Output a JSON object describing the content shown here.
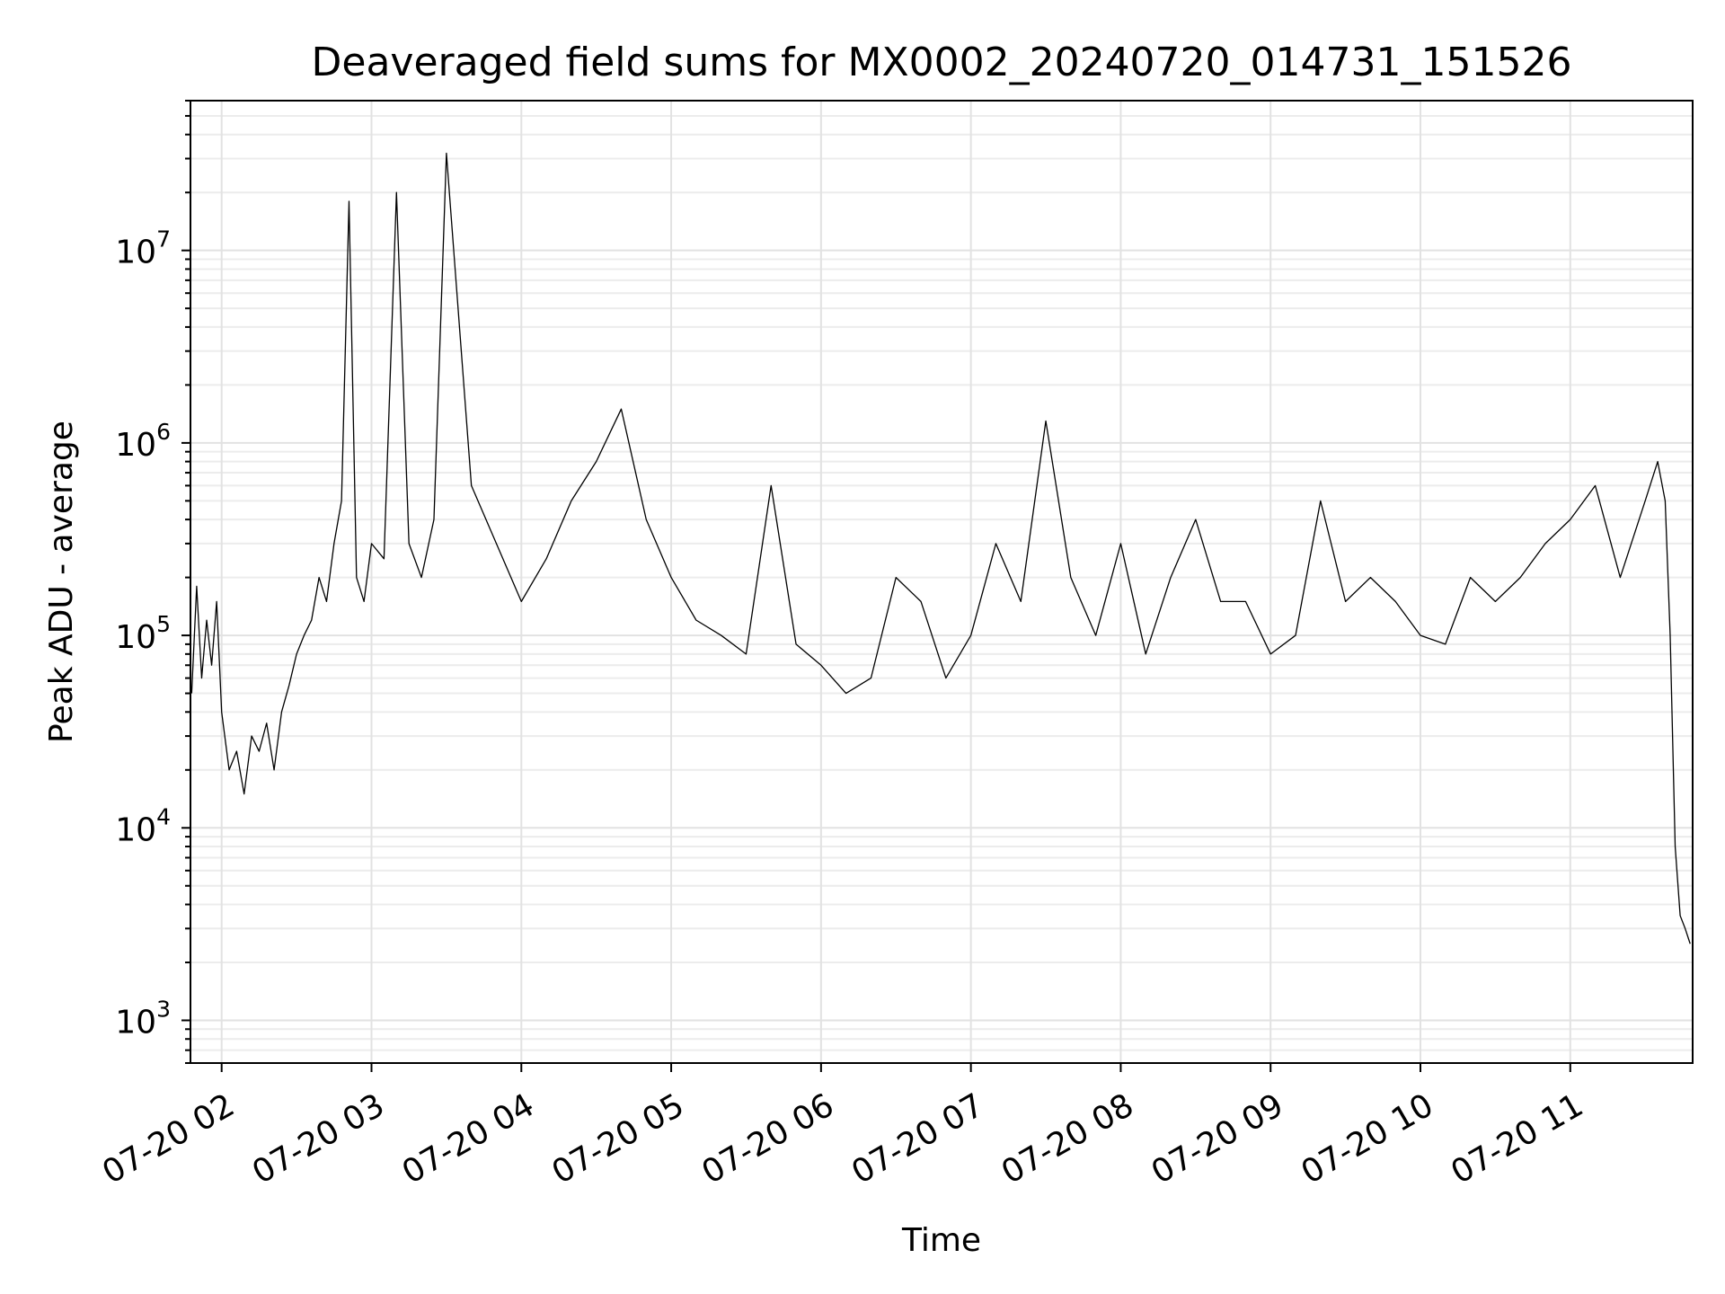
{
  "chart_data": {
    "type": "line",
    "title": "Deaveraged field sums for MX0002_20240720_014731_151526",
    "xlabel": "Time",
    "ylabel": "Peak ADU - average",
    "yscale": "log",
    "ylim": [
      600,
      60000000
    ],
    "xlim": [
      "2024-07-20 01:47:31",
      "2024-07-20 11:49:00"
    ],
    "x_ticks": [
      {
        "time": "2024-07-20 02:00",
        "label": "07-20 02"
      },
      {
        "time": "2024-07-20 03:00",
        "label": "07-20 03"
      },
      {
        "time": "2024-07-20 04:00",
        "label": "07-20 04"
      },
      {
        "time": "2024-07-20 05:00",
        "label": "07-20 05"
      },
      {
        "time": "2024-07-20 06:00",
        "label": "07-20 06"
      },
      {
        "time": "2024-07-20 07:00",
        "label": "07-20 07"
      },
      {
        "time": "2024-07-20 08:00",
        "label": "07-20 08"
      },
      {
        "time": "2024-07-20 09:00",
        "label": "07-20 09"
      },
      {
        "time": "2024-07-20 10:00",
        "label": "07-20 10"
      },
      {
        "time": "2024-07-20 11:00",
        "label": "07-20 11"
      }
    ],
    "y_ticks": [
      {
        "value": 1000,
        "base": "10",
        "exp": "3"
      },
      {
        "value": 10000,
        "base": "10",
        "exp": "4"
      },
      {
        "value": 100000,
        "base": "10",
        "exp": "5"
      },
      {
        "value": 1000000,
        "base": "10",
        "exp": "6"
      },
      {
        "value": 10000000,
        "base": "10",
        "exp": "7"
      }
    ],
    "grid": true,
    "line_color": "#000000",
    "series": [
      {
        "x": [
          "2024-07-20 01:48",
          "2024-07-20 01:50",
          "2024-07-20 01:52",
          "2024-07-20 01:54",
          "2024-07-20 01:56",
          "2024-07-20 01:58",
          "2024-07-20 02:00",
          "2024-07-20 02:03",
          "2024-07-20 02:06",
          "2024-07-20 02:09",
          "2024-07-20 02:12",
          "2024-07-20 02:15",
          "2024-07-20 02:18",
          "2024-07-20 02:21",
          "2024-07-20 02:24",
          "2024-07-20 02:27",
          "2024-07-20 02:30",
          "2024-07-20 02:33",
          "2024-07-20 02:36",
          "2024-07-20 02:39",
          "2024-07-20 02:42",
          "2024-07-20 02:45",
          "2024-07-20 02:48",
          "2024-07-20 02:51",
          "2024-07-20 02:54",
          "2024-07-20 02:57",
          "2024-07-20 03:00",
          "2024-07-20 03:05",
          "2024-07-20 03:10",
          "2024-07-20 03:15",
          "2024-07-20 03:20",
          "2024-07-20 03:25",
          "2024-07-20 03:30",
          "2024-07-20 03:40",
          "2024-07-20 03:50",
          "2024-07-20 04:00",
          "2024-07-20 04:10",
          "2024-07-20 04:20",
          "2024-07-20 04:30",
          "2024-07-20 04:40",
          "2024-07-20 04:50",
          "2024-07-20 05:00",
          "2024-07-20 05:10",
          "2024-07-20 05:20",
          "2024-07-20 05:30",
          "2024-07-20 05:40",
          "2024-07-20 05:50",
          "2024-07-20 06:00",
          "2024-07-20 06:10",
          "2024-07-20 06:20",
          "2024-07-20 06:30",
          "2024-07-20 06:40",
          "2024-07-20 06:50",
          "2024-07-20 07:00",
          "2024-07-20 07:10",
          "2024-07-20 07:20",
          "2024-07-20 07:30",
          "2024-07-20 07:40",
          "2024-07-20 07:50",
          "2024-07-20 08:00",
          "2024-07-20 08:10",
          "2024-07-20 08:20",
          "2024-07-20 08:30",
          "2024-07-20 08:40",
          "2024-07-20 08:50",
          "2024-07-20 09:00",
          "2024-07-20 09:10",
          "2024-07-20 09:20",
          "2024-07-20 09:30",
          "2024-07-20 09:40",
          "2024-07-20 09:50",
          "2024-07-20 10:00",
          "2024-07-20 10:10",
          "2024-07-20 10:20",
          "2024-07-20 10:30",
          "2024-07-20 10:40",
          "2024-07-20 10:50",
          "2024-07-20 11:00",
          "2024-07-20 11:10",
          "2024-07-20 11:20",
          "2024-07-20 11:30",
          "2024-07-20 11:35",
          "2024-07-20 11:38",
          "2024-07-20 11:40",
          "2024-07-20 11:42",
          "2024-07-20 11:44",
          "2024-07-20 11:46",
          "2024-07-20 11:48"
        ],
        "y": [
          50000,
          180000,
          60000,
          120000,
          70000,
          150000,
          40000,
          20000,
          25000,
          15000,
          30000,
          25000,
          35000,
          20000,
          40000,
          55000,
          80000,
          100000,
          120000,
          200000,
          150000,
          300000,
          500000,
          18000000,
          200000,
          150000,
          300000,
          250000,
          20000000,
          300000,
          200000,
          400000,
          32000000,
          600000,
          300000,
          150000,
          250000,
          500000,
          800000,
          1500000,
          400000,
          200000,
          120000,
          100000,
          80000,
          600000,
          90000,
          70000,
          50000,
          60000,
          200000,
          150000,
          60000,
          100000,
          300000,
          150000,
          1300000,
          200000,
          100000,
          300000,
          80000,
          200000,
          400000,
          150000,
          150000,
          80000,
          100000,
          500000,
          150000,
          200000,
          150000,
          100000,
          90000,
          200000,
          150000,
          200000,
          300000,
          400000,
          600000,
          200000,
          500000,
          800000,
          500000,
          100000,
          8000,
          3500,
          3000,
          2500
        ]
      }
    ]
  }
}
